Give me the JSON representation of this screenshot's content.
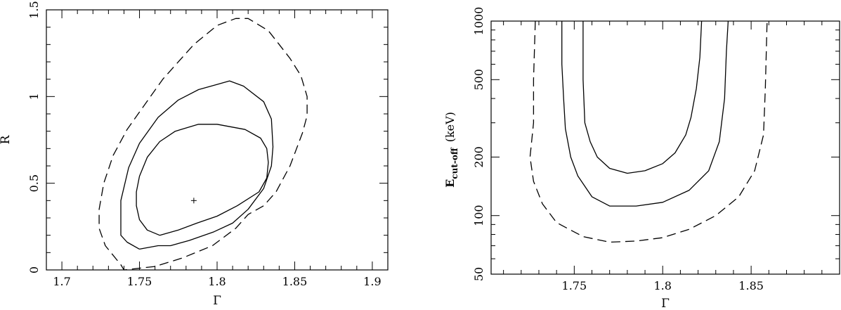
{
  "chart_data": [
    {
      "type": "contour",
      "title": "",
      "xlabel": "Γ",
      "ylabel": "R",
      "xlim": [
        1.69,
        1.91
      ],
      "ylim": [
        0,
        1.5
      ],
      "xscale": "linear",
      "yscale": "linear",
      "xticks": [
        1.7,
        1.75,
        1.8,
        1.85,
        1.9
      ],
      "xtick_labels": [
        "1.7",
        "1.75",
        "1.8",
        "1.85",
        "1.9"
      ],
      "yticks": [
        0,
        0.5,
        1,
        1.5
      ],
      "ytick_labels": [
        "0",
        "0.5",
        "1",
        "1.5"
      ],
      "best_fit": {
        "x": 1.785,
        "y": 0.4,
        "marker": "+"
      },
      "contours": [
        {
          "style": "solid",
          "points": [
            [
              1.763,
              0.2
            ],
            [
              1.775,
              0.23
            ],
            [
              1.787,
              0.27
            ],
            [
              1.8,
              0.31
            ],
            [
              1.813,
              0.37
            ],
            [
              1.827,
              0.45
            ],
            [
              1.832,
              0.53
            ],
            [
              1.833,
              0.62
            ],
            [
              1.832,
              0.7
            ],
            [
              1.828,
              0.76
            ],
            [
              1.818,
              0.81
            ],
            [
              1.8,
              0.84
            ],
            [
              1.788,
              0.84
            ],
            [
              1.773,
              0.8
            ],
            [
              1.763,
              0.74
            ],
            [
              1.755,
              0.65
            ],
            [
              1.75,
              0.54
            ],
            [
              1.748,
              0.45
            ],
            [
              1.748,
              0.37
            ],
            [
              1.75,
              0.29
            ],
            [
              1.755,
              0.23
            ],
            [
              1.763,
              0.2
            ]
          ]
        },
        {
          "style": "solid",
          "points": [
            [
              1.75,
              0.12
            ],
            [
              1.762,
              0.14
            ],
            [
              1.77,
              0.14
            ],
            [
              1.782,
              0.17
            ],
            [
              1.798,
              0.22
            ],
            [
              1.81,
              0.27
            ],
            [
              1.82,
              0.35
            ],
            [
              1.83,
              0.47
            ],
            [
              1.835,
              0.6
            ],
            [
              1.836,
              0.71
            ],
            [
              1.835,
              0.87
            ],
            [
              1.83,
              0.97
            ],
            [
              1.817,
              1.06
            ],
            [
              1.808,
              1.09
            ],
            [
              1.8,
              1.07
            ],
            [
              1.788,
              1.04
            ],
            [
              1.775,
              0.98
            ],
            [
              1.762,
              0.88
            ],
            [
              1.75,
              0.73
            ],
            [
              1.743,
              0.59
            ],
            [
              1.738,
              0.4
            ],
            [
              1.738,
              0.2
            ],
            [
              1.742,
              0.16
            ],
            [
              1.75,
              0.12
            ]
          ]
        },
        {
          "style": "dashed",
          "points": [
            [
              1.738,
              0.03
            ],
            [
              1.74,
              0.0
            ],
            [
              1.76,
              0.02
            ],
            [
              1.778,
              0.07
            ],
            [
              1.797,
              0.14
            ],
            [
              1.812,
              0.24
            ],
            [
              1.82,
              0.32
            ],
            [
              1.83,
              0.37
            ],
            [
              1.838,
              0.45
            ],
            [
              1.847,
              0.6
            ],
            [
              1.855,
              0.79
            ],
            [
              1.858,
              0.89
            ],
            [
              1.858,
              1.0
            ],
            [
              1.854,
              1.12
            ],
            [
              1.847,
              1.22
            ],
            [
              1.84,
              1.3
            ],
            [
              1.833,
              1.38
            ],
            [
              1.82,
              1.45
            ],
            [
              1.812,
              1.45
            ],
            [
              1.8,
              1.41
            ],
            [
              1.785,
              1.3
            ],
            [
              1.765,
              1.1
            ],
            [
              1.742,
              0.81
            ],
            [
              1.733,
              0.66
            ],
            [
              1.727,
              0.5
            ],
            [
              1.724,
              0.35
            ],
            [
              1.724,
              0.24
            ],
            [
              1.728,
              0.14
            ],
            [
              1.738,
              0.03
            ]
          ]
        }
      ]
    },
    {
      "type": "contour",
      "title": "",
      "xlabel": "Γ",
      "ylabel": "E_cut-off (keV)",
      "ylabel_main": "E",
      "ylabel_sub": "cut-off",
      "ylabel_unit": "(keV)",
      "xlim": [
        1.703,
        1.9
      ],
      "ylim": [
        50,
        1000
      ],
      "xscale": "linear",
      "yscale": "log",
      "xticks": [
        1.75,
        1.8,
        1.85
      ],
      "xtick_labels": [
        "1.75",
        "1.8",
        "1.85"
      ],
      "yticks": [
        50,
        100,
        200,
        500,
        1000
      ],
      "ytick_labels": [
        "50",
        "100",
        "200",
        "500",
        "1000"
      ],
      "contours": [
        {
          "style": "solid",
          "points": [
            [
              1.755,
              1000
            ],
            [
              1.755,
              500
            ],
            [
              1.756,
              300
            ],
            [
              1.759,
              240
            ],
            [
              1.763,
              200
            ],
            [
              1.77,
              175
            ],
            [
              1.78,
              165
            ],
            [
              1.79,
              170
            ],
            [
              1.8,
              185
            ],
            [
              1.807,
              210
            ],
            [
              1.813,
              260
            ],
            [
              1.816,
              320
            ],
            [
              1.819,
              450
            ],
            [
              1.821,
              650
            ],
            [
              1.822,
              1000
            ]
          ]
        },
        {
          "style": "solid",
          "points": [
            [
              1.743,
              1000
            ],
            [
              1.743,
              600
            ],
            [
              1.744,
              400
            ],
            [
              1.745,
              280
            ],
            [
              1.748,
              200
            ],
            [
              1.752,
              160
            ],
            [
              1.76,
              125
            ],
            [
              1.77,
              112
            ],
            [
              1.785,
              112
            ],
            [
              1.8,
              117
            ],
            [
              1.815,
              135
            ],
            [
              1.826,
              170
            ],
            [
              1.832,
              240
            ],
            [
              1.835,
              400
            ],
            [
              1.836,
              700
            ],
            [
              1.837,
              1000
            ]
          ]
        },
        {
          "style": "dashed",
          "points": [
            [
              1.728,
              1000
            ],
            [
              1.727,
              500
            ],
            [
              1.727,
              300
            ],
            [
              1.725,
              200
            ],
            [
              1.727,
              150
            ],
            [
              1.732,
              115
            ],
            [
              1.74,
              92
            ],
            [
              1.755,
              78
            ],
            [
              1.77,
              73
            ],
            [
              1.785,
              74
            ],
            [
              1.8,
              77
            ],
            [
              1.815,
              85
            ],
            [
              1.83,
              100
            ],
            [
              1.843,
              125
            ],
            [
              1.852,
              170
            ],
            [
              1.857,
              260
            ],
            [
              1.858,
              450
            ],
            [
              1.859,
              1000
            ]
          ]
        }
      ]
    }
  ]
}
